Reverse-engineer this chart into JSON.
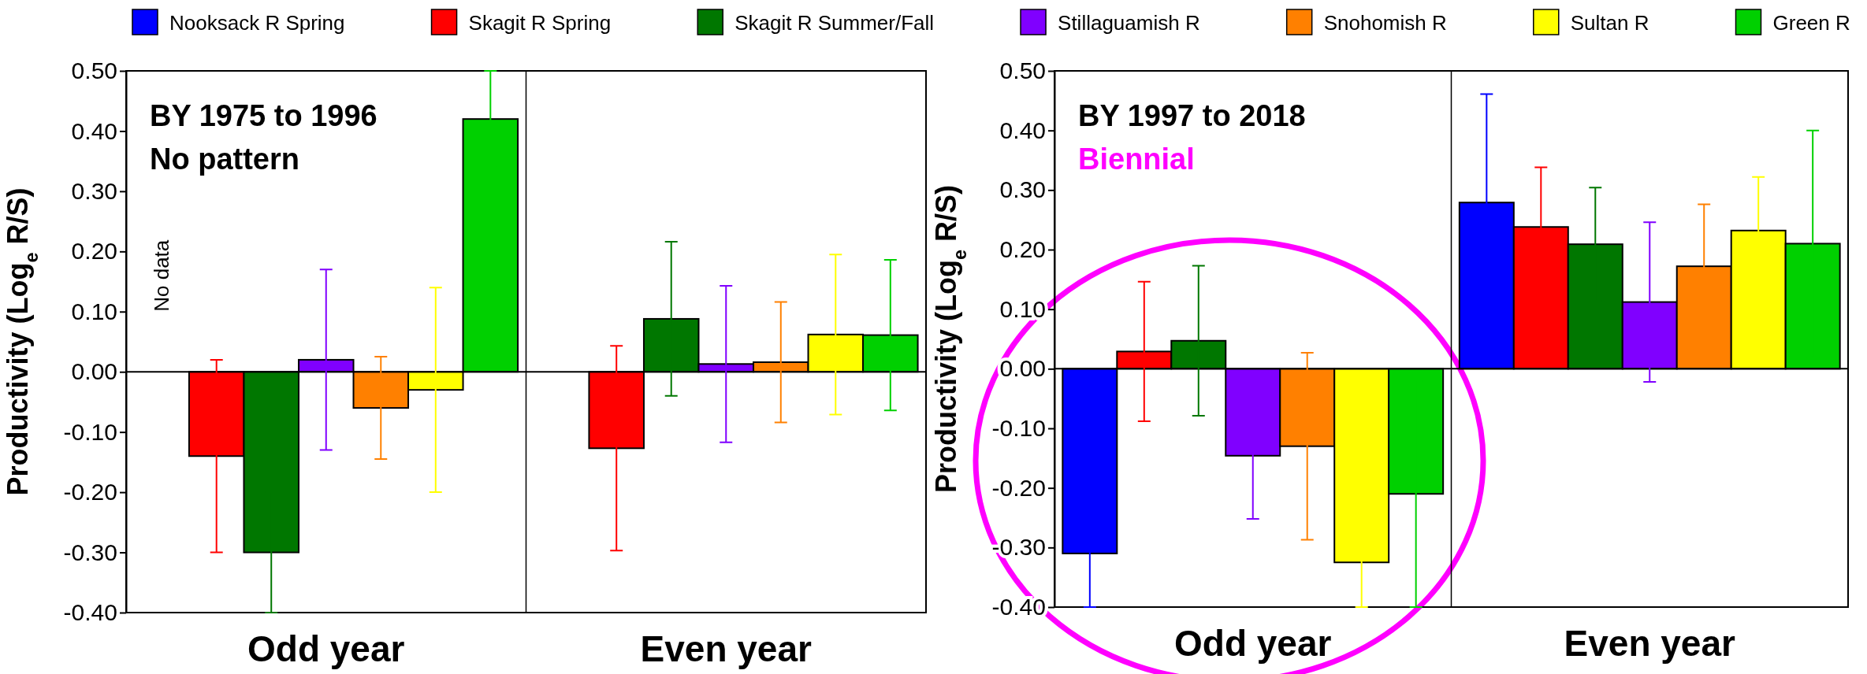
{
  "chart_data": [
    {
      "type": "bar",
      "categories": [
        "Odd year",
        "Even year"
      ],
      "ylabel": "Productivity (Log$_{e}$ R/S)",
      "ylim": [
        -0.4,
        0.5
      ],
      "yticks": [
        {
          "value": -0.4,
          "label": "-0.40"
        },
        {
          "value": -0.3,
          "label": "-0.30"
        },
        {
          "value": -0.2,
          "label": "-0.20"
        },
        {
          "value": -0.1,
          "label": "-0.10"
        },
        {
          "value": 0,
          "label": "0.00"
        },
        {
          "value": 0.1,
          "label": "0.10"
        },
        {
          "value": 0.2,
          "label": "0.20"
        },
        {
          "value": 0.3,
          "label": "0.30"
        },
        {
          "value": 0.4,
          "label": "0.40"
        },
        {
          "value": 0.5,
          "label": "0.50"
        }
      ],
      "legend": "top",
      "annotations": [
        "BY 1975 to 1996",
        "No pattern",
        "No data"
      ],
      "series": [
        {
          "name": "Nooksack R Spring",
          "color": "#0000ff",
          "values": [
            null,
            null
          ],
          "errors": [
            null,
            null
          ]
        },
        {
          "name": "Skagit R Spring",
          "color": "#ff0000",
          "values": [
            -0.14,
            -0.127
          ],
          "errors": [
            0.16,
            0.17
          ]
        },
        {
          "name": "Skagit R Summer/Fall",
          "color": "#007700",
          "values": [
            -0.3,
            0.088
          ],
          "errors": [
            0.1,
            0.128
          ]
        },
        {
          "name": "Stillaguamish R",
          "color": "#8000ff",
          "values": [
            0.02,
            0.013
          ],
          "errors": [
            0.15,
            0.13
          ]
        },
        {
          "name": "Snohomish R",
          "color": "#ff8000",
          "values": [
            -0.06,
            0.016
          ],
          "errors": [
            0.085,
            0.1
          ]
        },
        {
          "name": "Sultan R",
          "color": "#ffff00",
          "values": [
            -0.03,
            0.062
          ],
          "errors": [
            0.17,
            0.133
          ]
        },
        {
          "name": "Green R",
          "color": "#00d000",
          "values": [
            0.42,
            0.061
          ],
          "errors": [
            0.08,
            0.125
          ]
        }
      ]
    },
    {
      "type": "bar",
      "categories": [
        "Odd year",
        "Even year"
      ],
      "ylabel": "Productivity (Log$_{e}$ R/S)",
      "ylim": [
        -0.4,
        0.5
      ],
      "yticks": [
        {
          "value": -0.4,
          "label": "-0.40"
        },
        {
          "value": -0.3,
          "label": "-0.30"
        },
        {
          "value": -0.2,
          "label": "-0.20"
        },
        {
          "value": -0.1,
          "label": "-0.10"
        },
        {
          "value": 0,
          "label": "0.00"
        },
        {
          "value": 0.1,
          "label": "0.10"
        },
        {
          "value": 0.2,
          "label": "0.20"
        },
        {
          "value": 0.3,
          "label": "0.30"
        },
        {
          "value": 0.4,
          "label": "0.40"
        },
        {
          "value": 0.5,
          "label": "0.50"
        }
      ],
      "annotations": [
        "BY 1997 to 2018",
        "Biennial"
      ],
      "series": [
        {
          "color": "#0000ff",
          "values": [
            -0.31,
            0.279
          ],
          "errors": [
            0.09,
            0.182
          ]
        },
        {
          "color": "#ff0000",
          "values": [
            0.029,
            0.238
          ],
          "errors": [
            0.117,
            0.1
          ]
        },
        {
          "color": "#007700",
          "values": [
            0.047,
            0.209
          ],
          "errors": [
            0.126,
            0.095
          ]
        },
        {
          "color": "#8000ff",
          "values": [
            -0.146,
            0.112
          ],
          "errors": [
            0.106,
            0.134
          ]
        },
        {
          "color": "#ff8000",
          "values": [
            -0.13,
            0.172
          ],
          "errors": [
            0.157,
            0.104
          ]
        },
        {
          "color": "#ffff00",
          "values": [
            -0.325,
            0.232
          ],
          "errors": [
            0.075,
            0.09
          ]
        },
        {
          "color": "#00d000",
          "values": [
            -0.21,
            0.21
          ],
          "errors": [
            0.19,
            0.19
          ]
        }
      ]
    }
  ]
}
